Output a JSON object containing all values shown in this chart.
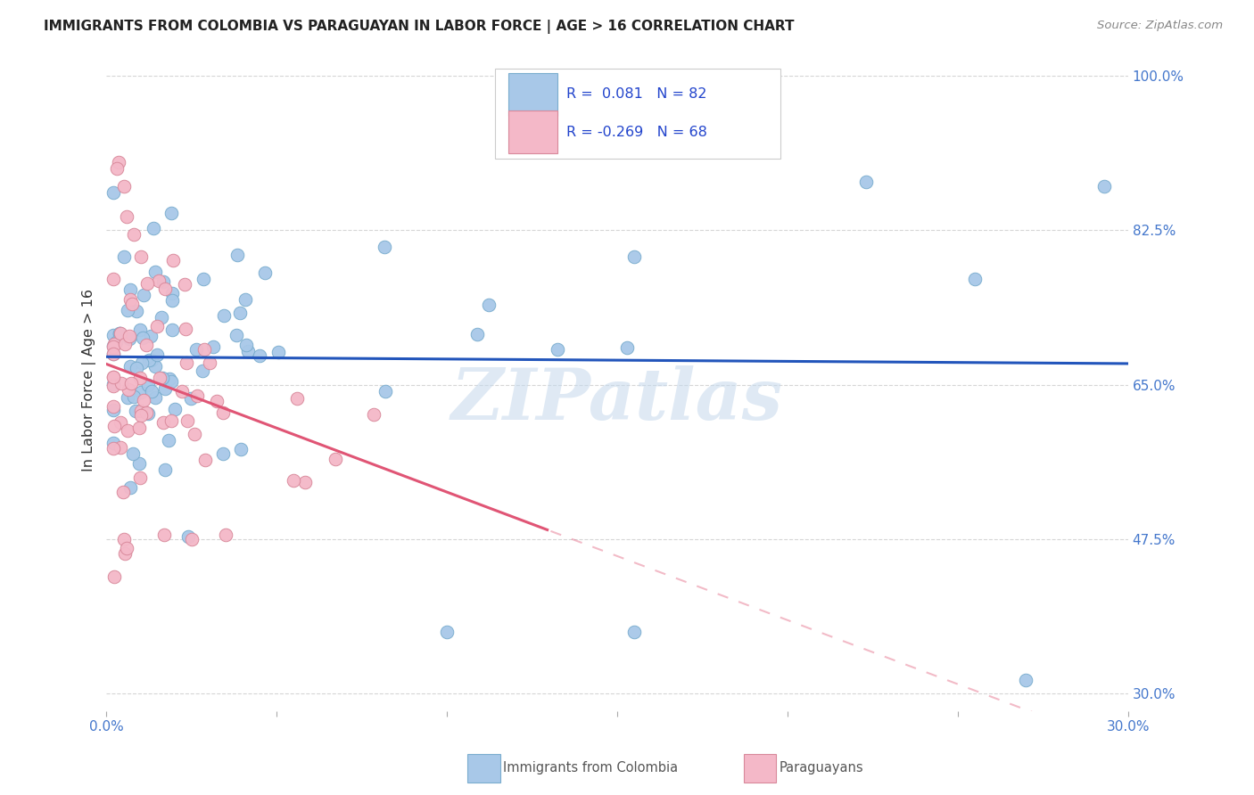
{
  "title": "IMMIGRANTS FROM COLOMBIA VS PARAGUAYAN IN LABOR FORCE | AGE > 16 CORRELATION CHART",
  "source": "Source: ZipAtlas.com",
  "ylabel": "In Labor Force | Age > 16",
  "xlim": [
    0.0,
    0.3
  ],
  "ylim": [
    0.28,
    1.03
  ],
  "colombia_R": 0.081,
  "colombia_N": 82,
  "paraguay_R": -0.269,
  "paraguay_N": 68,
  "colombia_color": "#a8c8e8",
  "colombia_edge": "#7aadce",
  "colombia_line": "#2255bb",
  "paraguay_color": "#f4b8c8",
  "paraguay_edge": "#d8889a",
  "paraguay_line": "#e05575",
  "watermark": "ZIPatlas",
  "background_color": "#ffffff",
  "legend_text_color": "#2244cc",
  "ytick_vals": [
    0.3,
    0.475,
    0.65,
    0.825,
    1.0
  ],
  "ytick_labels": [
    "30.0%",
    "47.5%",
    "65.0%",
    "82.5%",
    "100.0%"
  ]
}
